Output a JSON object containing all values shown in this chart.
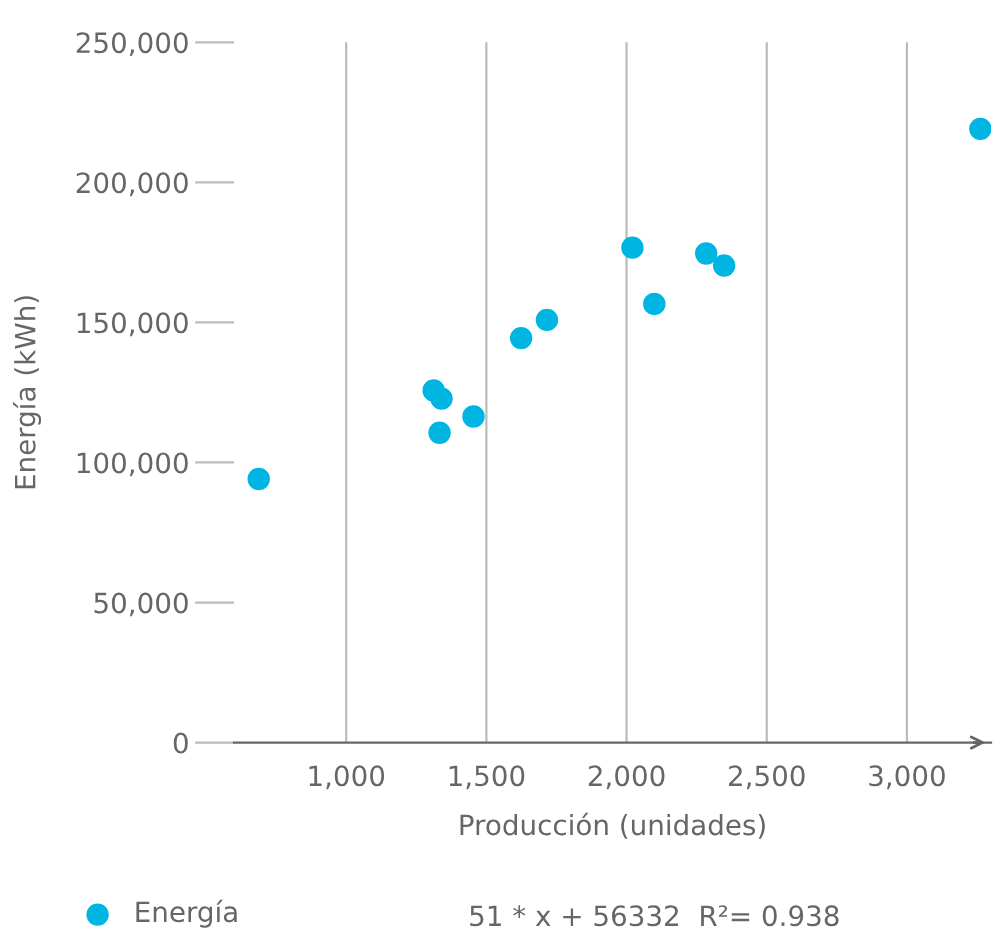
{
  "chart_data": {
    "type": "scatter",
    "xlabel": "Producción (unidades)",
    "ylabel": "Energía (kWh)",
    "x": [
      688,
      1312,
      1340,
      1333,
      1454,
      1624,
      1716,
      2021,
      2099,
      2284,
      2348,
      3262
    ],
    "series": [
      {
        "name": "Energía",
        "color": "#00b5e2",
        "values": [
          94100,
          125700,
          122800,
          110600,
          116400,
          144400,
          150900,
          176700,
          156600,
          174600,
          170300,
          219100
        ]
      }
    ],
    "xlim": [
      600,
      3300
    ],
    "xticks": [
      {
        "value": 1000,
        "label": "1,000"
      },
      {
        "value": 1500,
        "label": "1,500"
      },
      {
        "value": 2000,
        "label": "2,000"
      },
      {
        "value": 2500,
        "label": "2,500"
      },
      {
        "value": 3000,
        "label": "3,000"
      }
    ],
    "ylim": [
      0,
      250000
    ],
    "yticks": [
      {
        "value": 0,
        "label": "0"
      },
      {
        "value": 50000,
        "label": "50,000"
      },
      {
        "value": 100000,
        "label": "100,000"
      },
      {
        "value": 150000,
        "label": "150,000"
      },
      {
        "value": 200000,
        "label": "200,000"
      },
      {
        "value": 250000,
        "label": "250,000"
      }
    ],
    "grid": "x",
    "legend": "bottom",
    "marker": "circle",
    "annotations": [
      "51 * x + 56332  R²= 0.938"
    ]
  }
}
